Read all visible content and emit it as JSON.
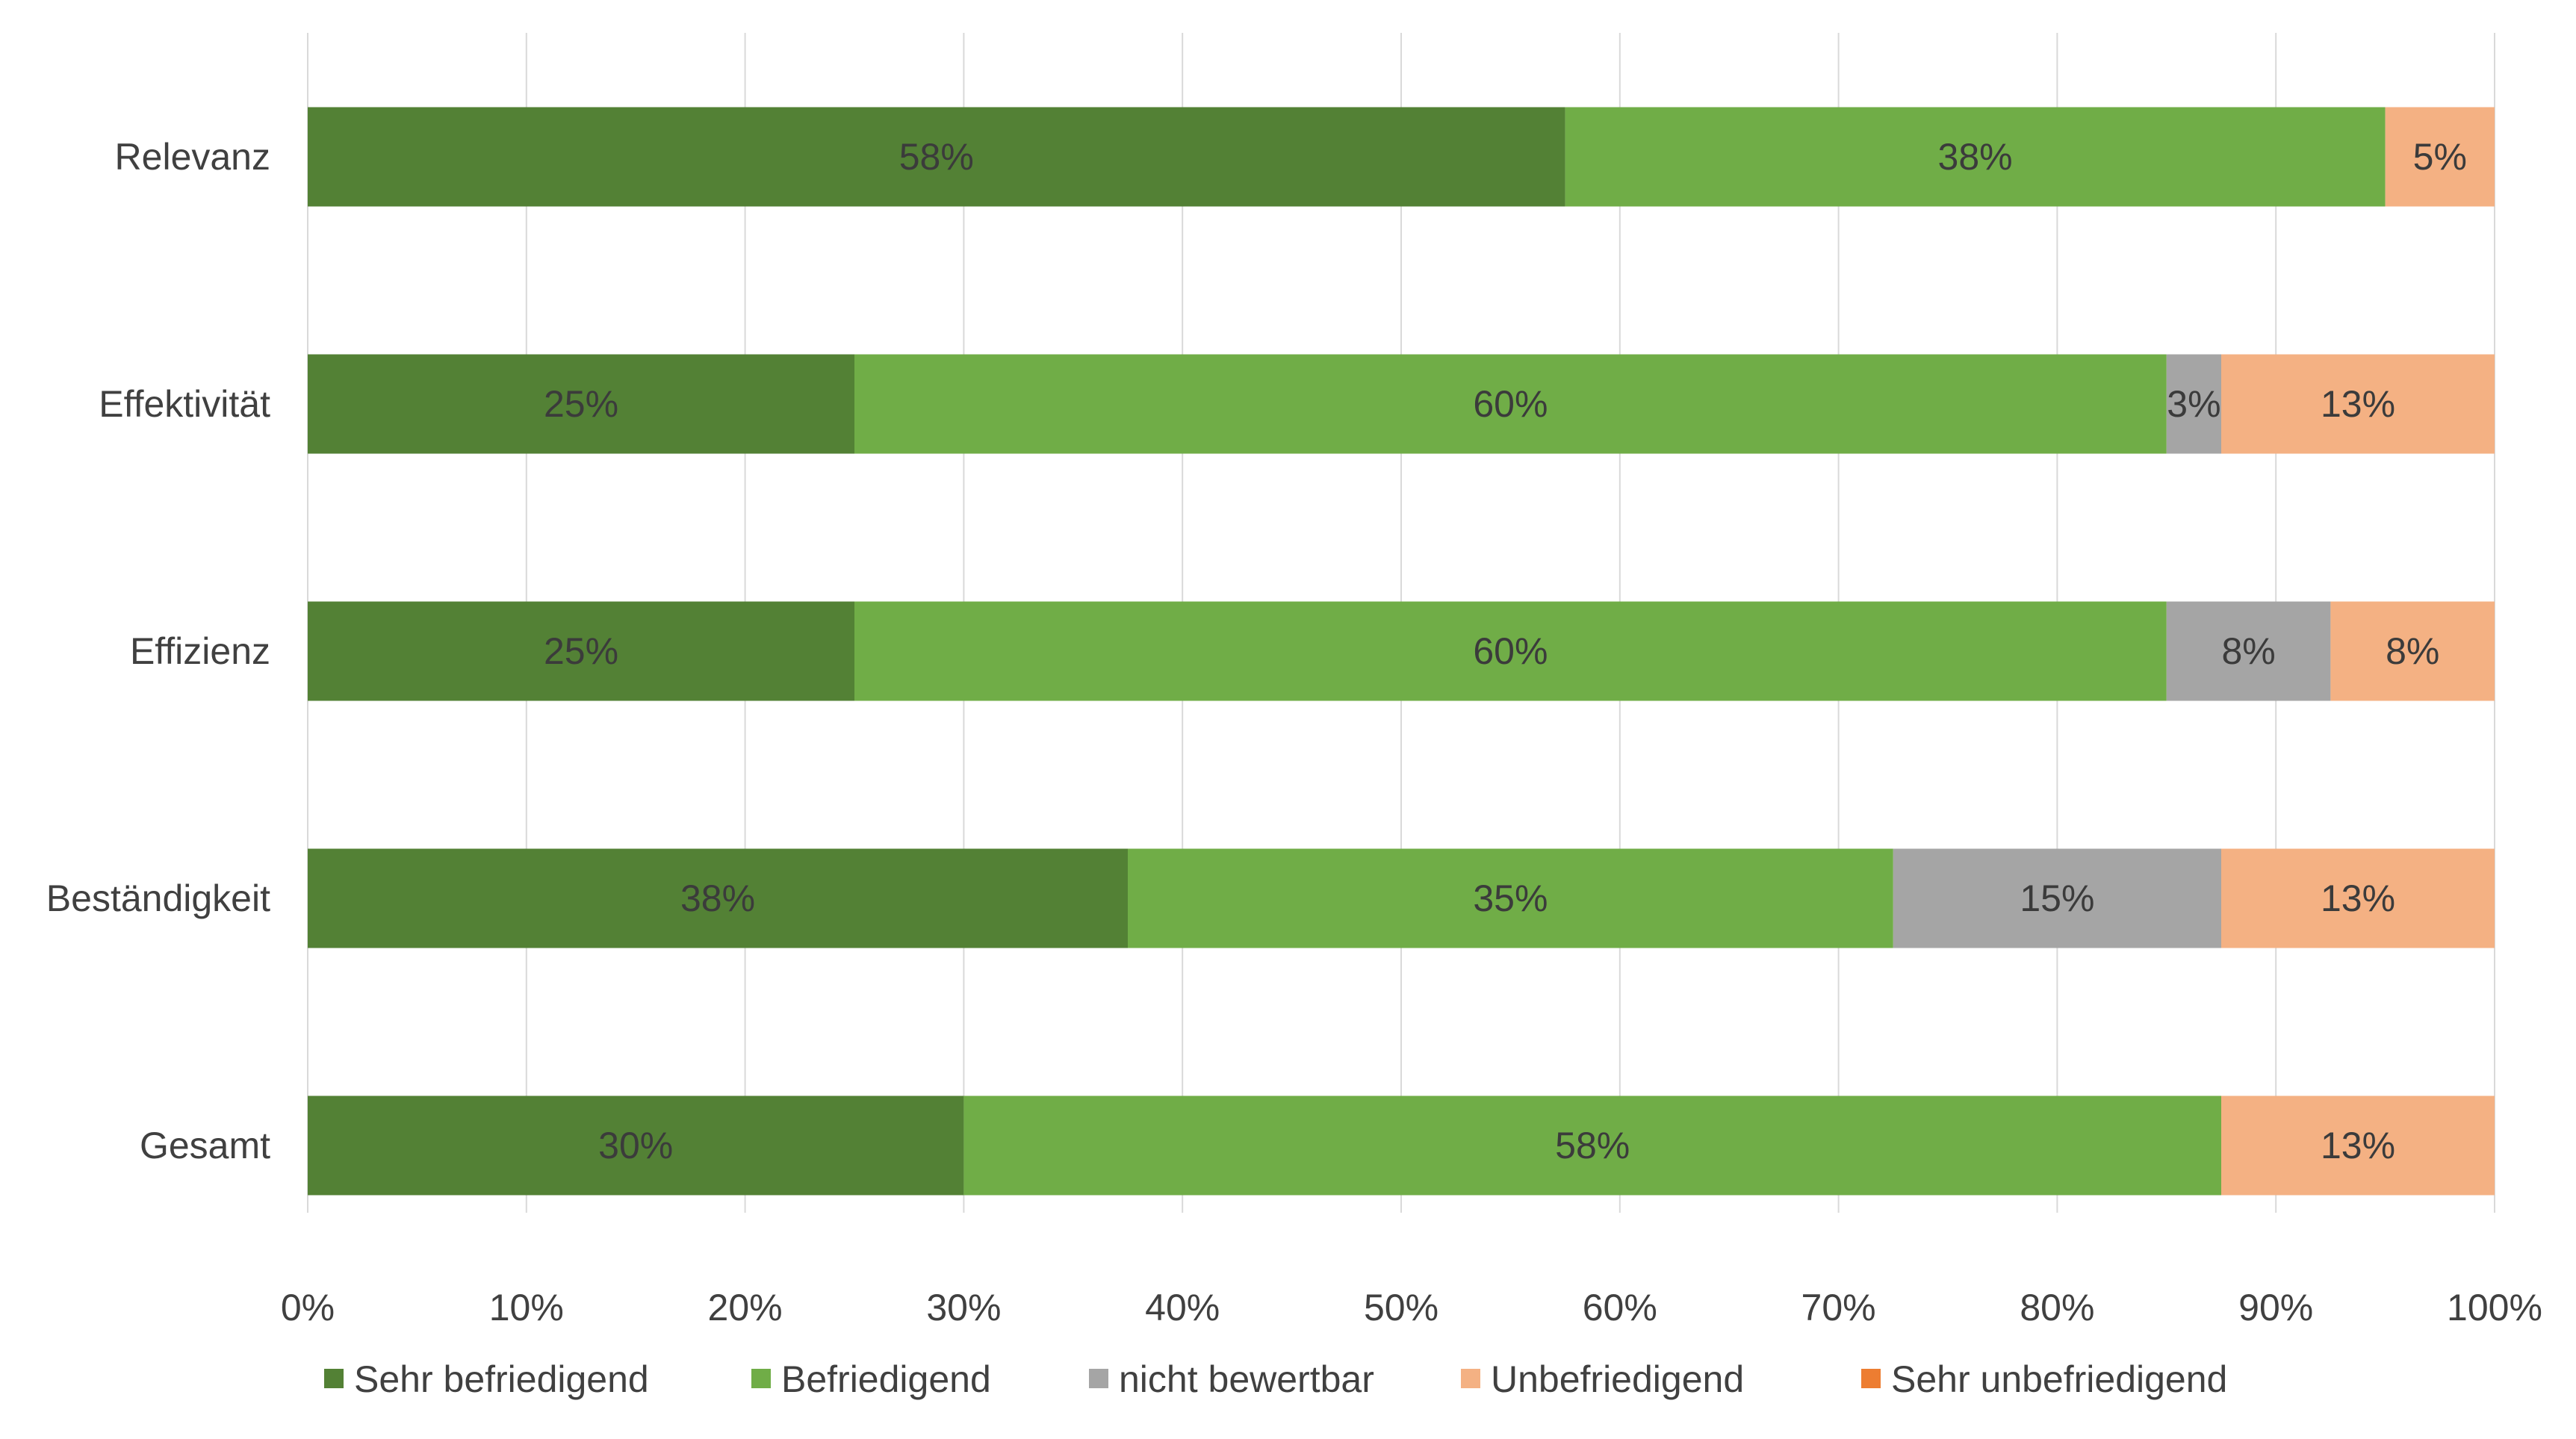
{
  "chart_data": {
    "type": "bar",
    "orientation": "horizontal",
    "stacked": true,
    "stack_mode": "percent",
    "categories": [
      "Relevanz",
      "Effektivität",
      "Effizienz",
      "Beständigkeit",
      "Gesamt"
    ],
    "series": [
      {
        "name": "Sehr befriedigend",
        "color": "#538135",
        "values": [
          57.5,
          25,
          25,
          37.5,
          30
        ],
        "labels": [
          "58%",
          "25%",
          "25%",
          "38%",
          "30%"
        ]
      },
      {
        "name": "Befriedigend",
        "color": "#70ad47",
        "values": [
          37.5,
          60,
          60,
          35,
          57.5
        ],
        "labels": [
          "38%",
          "60%",
          "60%",
          "35%",
          "58%"
        ]
      },
      {
        "name": "nicht bewertbar",
        "color": "#a5a5a5",
        "values": [
          0,
          2.5,
          7.5,
          15,
          0
        ],
        "labels": [
          "",
          "3%",
          "8%",
          "15%",
          ""
        ]
      },
      {
        "name": "Unbefriedigend",
        "color": "#f4b183",
        "values": [
          5,
          12.5,
          7.5,
          12.5,
          12.5
        ],
        "labels": [
          "5%",
          "13%",
          "8%",
          "13%",
          "13%"
        ]
      },
      {
        "name": "Sehr unbefriedigend",
        "color": "#ed7d31",
        "values": [
          0,
          0,
          0,
          0,
          0
        ],
        "labels": [
          "",
          "",
          "",
          "",
          ""
        ]
      }
    ],
    "xaxis": {
      "ticks": [
        0,
        10,
        20,
        30,
        40,
        50,
        60,
        70,
        80,
        90,
        100
      ],
      "tick_labels": [
        "0%",
        "10%",
        "20%",
        "30%",
        "40%",
        "50%",
        "60%",
        "70%",
        "80%",
        "90%",
        "100%"
      ],
      "xlim": [
        0,
        100
      ]
    },
    "grid": true,
    "legend": "bottom",
    "title": "",
    "xlabel": "",
    "ylabel": ""
  }
}
